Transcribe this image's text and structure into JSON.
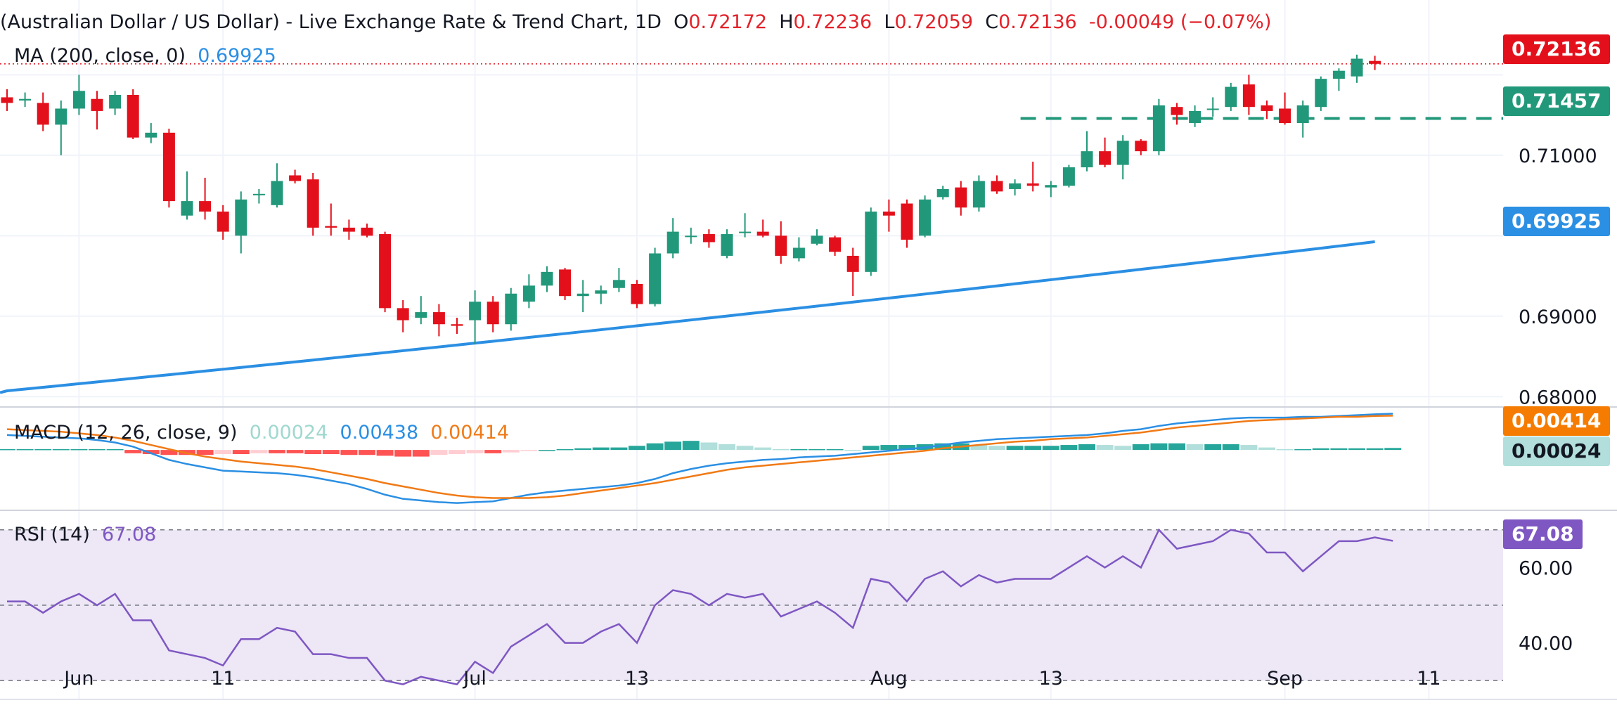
{
  "header": {
    "title": "(Australian Dollar / US Dollar) - Live Exchange Rate & Trend Chart, 1D",
    "open_label": "O",
    "open": "0.72172",
    "high_label": "H",
    "high": "0.72236",
    "low_label": "L",
    "low": "0.72059",
    "close_label": "C",
    "close": "0.72136",
    "change": "-0.00049 (−0.07%)"
  },
  "indicators": {
    "ma": {
      "label": "MA (200, close, 0)",
      "value": "0.69925",
      "color": "#2b8fe3"
    },
    "macd": {
      "label": "MACD (12, 26, close, 9)",
      "hist": "0.00024",
      "macd": "0.00438",
      "signal": "0.00414",
      "hist_color": "#b2dfdb",
      "macd_color": "#2b8fe3",
      "signal_color": "#f07a16"
    },
    "rsi": {
      "label": "RSI (14)",
      "value": "67.08",
      "color": "#7e57c2"
    }
  },
  "price_labels": {
    "last": "0.72136",
    "level": "0.71457",
    "ma": "0.69925",
    "macd_signal": "0.00414",
    "macd_hist": "0.00024",
    "rsi": "67.08"
  },
  "colors": {
    "up": "#22987a",
    "down": "#e3101b",
    "ma": "#2b8fe3",
    "level": "#22987a",
    "rsi_band": "#ede7f6"
  },
  "chart_data": {
    "type": "candlestick",
    "y_ticks": [
      "0.71000",
      "0.69000",
      "0.68000"
    ],
    "ylim": [
      0.6788,
      0.7258
    ],
    "x_ticks": [
      {
        "label": "Jun",
        "i": 4
      },
      {
        "label": "11",
        "i": 12
      },
      {
        "label": "Jul",
        "i": 26
      },
      {
        "label": "13",
        "i": 35
      },
      {
        "label": "Aug",
        "i": 49
      },
      {
        "label": "13",
        "i": 58
      },
      {
        "label": "Sep",
        "i": 71
      },
      {
        "label": "11",
        "i": 79
      }
    ],
    "candles": [
      {
        "o": 0.7172,
        "h": 0.7182,
        "l": 0.7155,
        "c": 0.7165
      },
      {
        "o": 0.7168,
        "h": 0.7178,
        "l": 0.716,
        "c": 0.717
      },
      {
        "o": 0.7165,
        "h": 0.7178,
        "l": 0.713,
        "c": 0.7138
      },
      {
        "o": 0.7138,
        "h": 0.7168,
        "l": 0.71,
        "c": 0.7158
      },
      {
        "o": 0.7158,
        "h": 0.72,
        "l": 0.715,
        "c": 0.718
      },
      {
        "o": 0.717,
        "h": 0.718,
        "l": 0.7132,
        "c": 0.7155
      },
      {
        "o": 0.7158,
        "h": 0.718,
        "l": 0.715,
        "c": 0.7175
      },
      {
        "o": 0.7175,
        "h": 0.7182,
        "l": 0.712,
        "c": 0.7122
      },
      {
        "o": 0.7122,
        "h": 0.714,
        "l": 0.7115,
        "c": 0.7128
      },
      {
        "o": 0.7128,
        "h": 0.7133,
        "l": 0.7035,
        "c": 0.7043
      },
      {
        "o": 0.7025,
        "h": 0.708,
        "l": 0.702,
        "c": 0.7043
      },
      {
        "o": 0.7043,
        "h": 0.7072,
        "l": 0.702,
        "c": 0.703
      },
      {
        "o": 0.703,
        "h": 0.7038,
        "l": 0.6995,
        "c": 0.7005
      },
      {
        "o": 0.7,
        "h": 0.7055,
        "l": 0.6978,
        "c": 0.7045
      },
      {
        "o": 0.7052,
        "h": 0.7058,
        "l": 0.704,
        "c": 0.7052
      },
      {
        "o": 0.7038,
        "h": 0.709,
        "l": 0.7035,
        "c": 0.7068
      },
      {
        "o": 0.7075,
        "h": 0.7082,
        "l": 0.7065,
        "c": 0.7068
      },
      {
        "o": 0.707,
        "h": 0.7078,
        "l": 0.7,
        "c": 0.701
      },
      {
        "o": 0.7012,
        "h": 0.704,
        "l": 0.7,
        "c": 0.701
      },
      {
        "o": 0.701,
        "h": 0.702,
        "l": 0.6995,
        "c": 0.7005
      },
      {
        "o": 0.701,
        "h": 0.7015,
        "l": 0.6998,
        "c": 0.7
      },
      {
        "o": 0.7002,
        "h": 0.7005,
        "l": 0.6905,
        "c": 0.691
      },
      {
        "o": 0.691,
        "h": 0.692,
        "l": 0.688,
        "c": 0.6895
      },
      {
        "o": 0.6898,
        "h": 0.6925,
        "l": 0.689,
        "c": 0.6905
      },
      {
        "o": 0.6905,
        "h": 0.6915,
        "l": 0.6875,
        "c": 0.689
      },
      {
        "o": 0.689,
        "h": 0.6898,
        "l": 0.6878,
        "c": 0.6888
      },
      {
        "o": 0.6895,
        "h": 0.6932,
        "l": 0.6865,
        "c": 0.6918
      },
      {
        "o": 0.6918,
        "h": 0.6925,
        "l": 0.688,
        "c": 0.689
      },
      {
        "o": 0.689,
        "h": 0.6935,
        "l": 0.6882,
        "c": 0.6928
      },
      {
        "o": 0.6918,
        "h": 0.6952,
        "l": 0.691,
        "c": 0.6938
      },
      {
        "o": 0.6938,
        "h": 0.6962,
        "l": 0.693,
        "c": 0.6955
      },
      {
        "o": 0.6958,
        "h": 0.696,
        "l": 0.692,
        "c": 0.6925
      },
      {
        "o": 0.6925,
        "h": 0.6945,
        "l": 0.6905,
        "c": 0.6928
      },
      {
        "o": 0.6928,
        "h": 0.6938,
        "l": 0.6915,
        "c": 0.6932
      },
      {
        "o": 0.6935,
        "h": 0.696,
        "l": 0.693,
        "c": 0.6945
      },
      {
        "o": 0.694,
        "h": 0.6945,
        "l": 0.691,
        "c": 0.6915
      },
      {
        "o": 0.6915,
        "h": 0.6985,
        "l": 0.6912,
        "c": 0.6978
      },
      {
        "o": 0.6978,
        "h": 0.7022,
        "l": 0.6972,
        "c": 0.7005
      },
      {
        "o": 0.7,
        "h": 0.701,
        "l": 0.699,
        "c": 0.7
      },
      {
        "o": 0.7002,
        "h": 0.7008,
        "l": 0.6985,
        "c": 0.6992
      },
      {
        "o": 0.6975,
        "h": 0.7008,
        "l": 0.6972,
        "c": 0.7002
      },
      {
        "o": 0.7005,
        "h": 0.7028,
        "l": 0.6998,
        "c": 0.7005
      },
      {
        "o": 0.7005,
        "h": 0.702,
        "l": 0.6998,
        "c": 0.7
      },
      {
        "o": 0.7,
        "h": 0.7018,
        "l": 0.6965,
        "c": 0.6975
      },
      {
        "o": 0.6972,
        "h": 0.6998,
        "l": 0.6968,
        "c": 0.6985
      },
      {
        "o": 0.699,
        "h": 0.7008,
        "l": 0.6988,
        "c": 0.7
      },
      {
        "o": 0.6998,
        "h": 0.7,
        "l": 0.6975,
        "c": 0.698
      },
      {
        "o": 0.6975,
        "h": 0.6985,
        "l": 0.6925,
        "c": 0.6955
      },
      {
        "o": 0.6955,
        "h": 0.7035,
        "l": 0.695,
        "c": 0.703
      },
      {
        "o": 0.703,
        "h": 0.7045,
        "l": 0.7005,
        "c": 0.7025
      },
      {
        "o": 0.704,
        "h": 0.7045,
        "l": 0.6985,
        "c": 0.6995
      },
      {
        "o": 0.7,
        "h": 0.705,
        "l": 0.6998,
        "c": 0.7045
      },
      {
        "o": 0.7048,
        "h": 0.7062,
        "l": 0.7045,
        "c": 0.7058
      },
      {
        "o": 0.706,
        "h": 0.7068,
        "l": 0.7025,
        "c": 0.7035
      },
      {
        "o": 0.7035,
        "h": 0.7075,
        "l": 0.703,
        "c": 0.7068
      },
      {
        "o": 0.7068,
        "h": 0.7075,
        "l": 0.7052,
        "c": 0.7055
      },
      {
        "o": 0.7058,
        "h": 0.707,
        "l": 0.705,
        "c": 0.7065
      },
      {
        "o": 0.7065,
        "h": 0.7092,
        "l": 0.7055,
        "c": 0.7062
      },
      {
        "o": 0.706,
        "h": 0.7068,
        "l": 0.7048,
        "c": 0.7063
      },
      {
        "o": 0.7062,
        "h": 0.7088,
        "l": 0.706,
        "c": 0.7085
      },
      {
        "o": 0.7085,
        "h": 0.713,
        "l": 0.708,
        "c": 0.7105
      },
      {
        "o": 0.7105,
        "h": 0.7122,
        "l": 0.7085,
        "c": 0.7088
      },
      {
        "o": 0.7088,
        "h": 0.7125,
        "l": 0.707,
        "c": 0.7118
      },
      {
        "o": 0.7118,
        "h": 0.712,
        "l": 0.71,
        "c": 0.7105
      },
      {
        "o": 0.7105,
        "h": 0.717,
        "l": 0.71,
        "c": 0.7162
      },
      {
        "o": 0.716,
        "h": 0.7165,
        "l": 0.7138,
        "c": 0.715
      },
      {
        "o": 0.714,
        "h": 0.7162,
        "l": 0.7135,
        "c": 0.7155
      },
      {
        "o": 0.7158,
        "h": 0.7172,
        "l": 0.7148,
        "c": 0.7158
      },
      {
        "o": 0.716,
        "h": 0.719,
        "l": 0.7155,
        "c": 0.7185
      },
      {
        "o": 0.7188,
        "h": 0.72,
        "l": 0.715,
        "c": 0.716
      },
      {
        "o": 0.7162,
        "h": 0.7168,
        "l": 0.7145,
        "c": 0.7155
      },
      {
        "o": 0.7158,
        "h": 0.7178,
        "l": 0.7138,
        "c": 0.714
      },
      {
        "o": 0.714,
        "h": 0.7168,
        "l": 0.7122,
        "c": 0.7162
      },
      {
        "o": 0.716,
        "h": 0.7198,
        "l": 0.7155,
        "c": 0.7195
      },
      {
        "o": 0.7195,
        "h": 0.7208,
        "l": 0.718,
        "c": 0.7205
      },
      {
        "o": 0.7198,
        "h": 0.7225,
        "l": 0.719,
        "c": 0.722
      },
      {
        "o": 0.72172,
        "h": 0.72236,
        "l": 0.72059,
        "c": 0.72136
      }
    ],
    "ma200": {
      "start": 0.6805,
      "end": 0.69925
    },
    "level": 0.71457,
    "macd": {
      "ylim": [
        -0.0072,
        0.0051
      ],
      "hist": [
        0.0001,
        0.0001,
        0.0001,
        0.0001,
        0.0001,
        0.0001,
        0.0001,
        -0.0004,
        -0.0005,
        -0.0006,
        -0.0006,
        -0.0006,
        -0.0005,
        -0.0005,
        -0.0004,
        -0.0004,
        -0.0004,
        -0.0005,
        -0.0005,
        -0.0006,
        -0.0006,
        -0.0007,
        -0.0008,
        -0.0008,
        -0.0006,
        -0.0005,
        -0.0004,
        -0.0004,
        -0.0003,
        -0.0001,
        0.0,
        0.0001,
        0.0002,
        0.0003,
        0.0003,
        0.0005,
        0.0008,
        0.001,
        0.0011,
        0.0009,
        0.0007,
        0.0005,
        0.0003,
        0.0001,
        0.0001,
        0.0001,
        0.0001,
        0.0,
        0.0005,
        0.0006,
        0.0006,
        0.0007,
        0.0008,
        0.0008,
        0.0006,
        0.0005,
        0.0005,
        0.0005,
        0.0005,
        0.0006,
        0.0007,
        0.0006,
        0.0005,
        0.0007,
        0.0008,
        0.0008,
        0.0007,
        0.0007,
        0.0007,
        0.0006,
        0.0003,
        0.0001,
        0.0001,
        0.0002,
        0.0002,
        0.0002,
        0.0002,
        0.00024
      ],
      "macd_line": [
        0.0018,
        0.0017,
        0.0016,
        0.0015,
        0.0014,
        0.0012,
        0.0009,
        0.0004,
        -0.0004,
        -0.0012,
        -0.0017,
        -0.0021,
        -0.0025,
        -0.0026,
        -0.0027,
        -0.0028,
        -0.003,
        -0.0033,
        -0.0037,
        -0.0041,
        -0.0047,
        -0.0054,
        -0.0059,
        -0.0061,
        -0.0063,
        -0.0064,
        -0.0063,
        -0.0062,
        -0.0058,
        -0.0054,
        -0.0051,
        -0.0049,
        -0.0047,
        -0.0045,
        -0.0043,
        -0.004,
        -0.0035,
        -0.0028,
        -0.0023,
        -0.0019,
        -0.0016,
        -0.0014,
        -0.0012,
        -0.0011,
        -0.0009,
        -0.0008,
        -0.0007,
        -0.0005,
        -0.0003,
        -0.0001,
        0.0001,
        0.0003,
        0.0006,
        0.0009,
        0.0011,
        0.0013,
        0.0014,
        0.0015,
        0.0016,
        0.0017,
        0.0018,
        0.002,
        0.0023,
        0.0025,
        0.0029,
        0.0032,
        0.0034,
        0.0036,
        0.0038,
        0.0039,
        0.0039,
        0.0039,
        0.004,
        0.004,
        0.0041,
        0.0042,
        0.0043,
        0.00438
      ],
      "signal_line": [
        0.0025,
        0.0024,
        0.0023,
        0.0022,
        0.002,
        0.0018,
        0.0015,
        0.0011,
        0.0006,
        0.0001,
        -0.0004,
        -0.0008,
        -0.0011,
        -0.0014,
        -0.0016,
        -0.0018,
        -0.002,
        -0.0023,
        -0.0027,
        -0.0031,
        -0.0035,
        -0.004,
        -0.0044,
        -0.0048,
        -0.0052,
        -0.0055,
        -0.0057,
        -0.0058,
        -0.0058,
        -0.0058,
        -0.0057,
        -0.0055,
        -0.0052,
        -0.0049,
        -0.0046,
        -0.0043,
        -0.004,
        -0.0036,
        -0.0032,
        -0.0028,
        -0.0024,
        -0.0021,
        -0.0019,
        -0.0017,
        -0.0015,
        -0.0013,
        -0.0011,
        -0.0009,
        -0.0007,
        -0.0005,
        -0.0003,
        -0.0001,
        0.0002,
        0.0004,
        0.0006,
        0.0008,
        0.001,
        0.0011,
        0.0013,
        0.0014,
        0.0015,
        0.0017,
        0.0019,
        0.0021,
        0.0024,
        0.0027,
        0.0029,
        0.0031,
        0.0033,
        0.0035,
        0.0036,
        0.0037,
        0.0038,
        0.0039,
        0.004,
        0.004,
        0.0041,
        0.00414
      ]
    },
    "rsi": {
      "ylim": [
        25,
        75
      ],
      "ticks": [
        "60.00",
        "40.00"
      ],
      "band": [
        30,
        70
      ],
      "mid": 50,
      "values": [
        51,
        51,
        48,
        51,
        53,
        50,
        53,
        46,
        46,
        38,
        37,
        36,
        34,
        41,
        41,
        44,
        43,
        37,
        37,
        36,
        36,
        30,
        29,
        31,
        30,
        29,
        35,
        32,
        39,
        42,
        45,
        40,
        40,
        43,
        45,
        40,
        50,
        54,
        53,
        50,
        53,
        52,
        53,
        47,
        49,
        51,
        48,
        44,
        57,
        56,
        51,
        57,
        59,
        55,
        58,
        56,
        57,
        57,
        57,
        60,
        63,
        60,
        63,
        60,
        70,
        65,
        66,
        67,
        70,
        69,
        64,
        64,
        59,
        63,
        67,
        67,
        68,
        67.08
      ]
    }
  }
}
